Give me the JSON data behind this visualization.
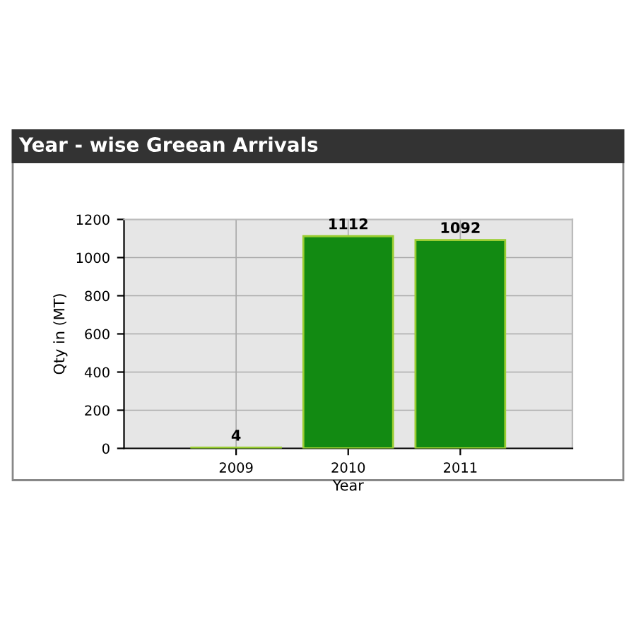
{
  "chart_data": {
    "type": "bar",
    "title": "Year - wise Greean Arrivals",
    "xlabel": "Year",
    "ylabel": "Qty in (MT)",
    "categories": [
      "2009",
      "2010",
      "2011"
    ],
    "values": [
      4,
      1112,
      1092
    ],
    "color": "#128a12",
    "ylim": [
      0,
      1200
    ],
    "yticks": [
      0,
      200,
      400,
      600,
      800,
      1000,
      1200
    ],
    "grid": true,
    "data_labels": true
  }
}
